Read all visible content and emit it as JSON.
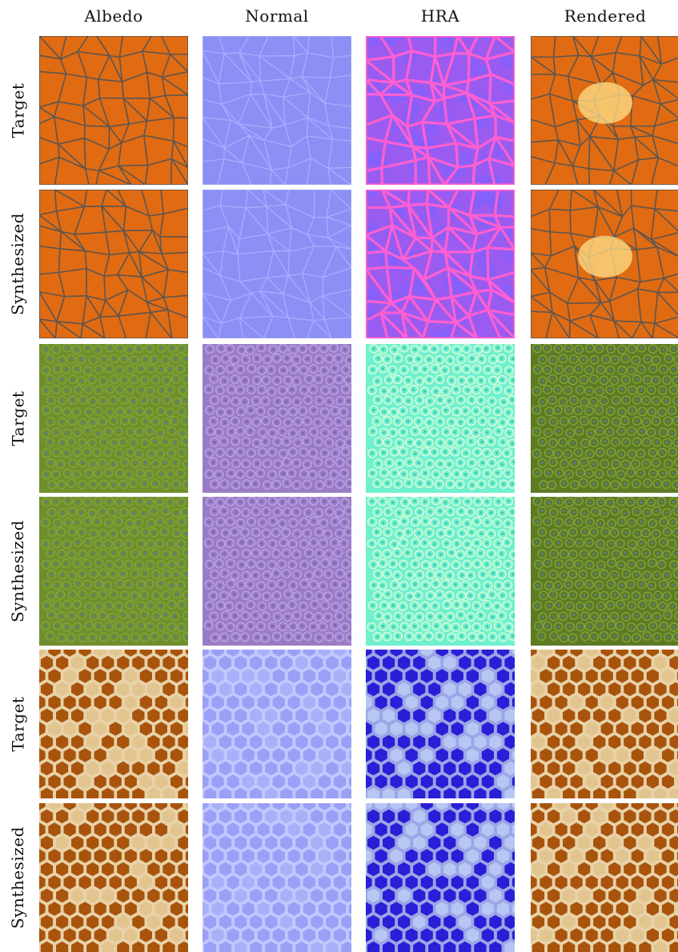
{
  "columns": [
    "Albedo",
    "Normal",
    "HRA",
    "Rendered"
  ],
  "rows": [
    "Target",
    "Synthesized",
    "Target",
    "Synthesized",
    "Target",
    "Synthesized"
  ],
  "materials": [
    {
      "name": "cells",
      "albedo": "#e06b12",
      "line": "#5d5550",
      "normal": "#8c90f4",
      "hra_fill": "#9a5cf0",
      "hra_line": "#ff5fd0"
    },
    {
      "name": "scales",
      "albedo": "#6f8f2c",
      "bump": "#9a7cc6",
      "hra_fill": "#6ff0cf",
      "hra_spot": "#e8ffd8",
      "spot": "#5c7a9a"
    },
    {
      "name": "honeycomb",
      "albedo": "#a8540c",
      "wall": "#e8d2a8",
      "normal": "#9aa0f6",
      "hra_fill": "#2a1ed6",
      "hra_light": "#b8c6f4"
    }
  ]
}
